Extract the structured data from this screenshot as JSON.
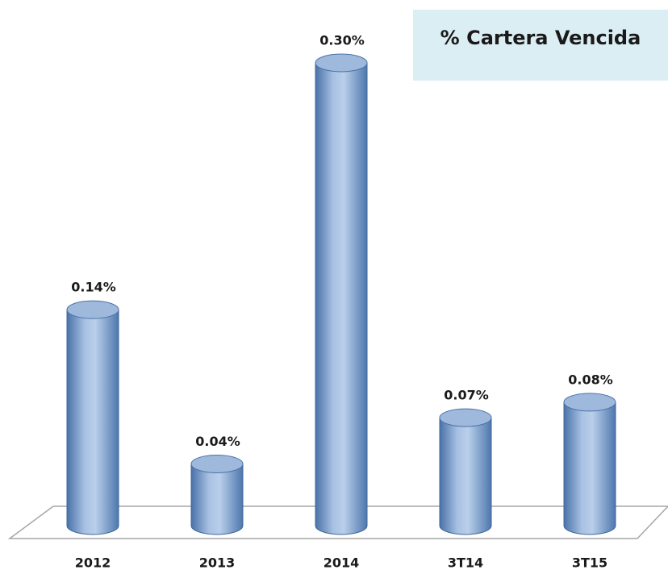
{
  "chart_data": {
    "type": "bar",
    "title": "% Cartera Vencida",
    "categories": [
      "2012",
      "2013",
      "2014",
      "3T14",
      "3T15"
    ],
    "values": [
      0.14,
      0.04,
      0.3,
      0.07,
      0.08
    ],
    "value_labels": [
      "0.14%",
      "0.04%",
      "0.30%",
      "0.07%",
      "0.08%"
    ],
    "color": "#4f81bd"
  }
}
